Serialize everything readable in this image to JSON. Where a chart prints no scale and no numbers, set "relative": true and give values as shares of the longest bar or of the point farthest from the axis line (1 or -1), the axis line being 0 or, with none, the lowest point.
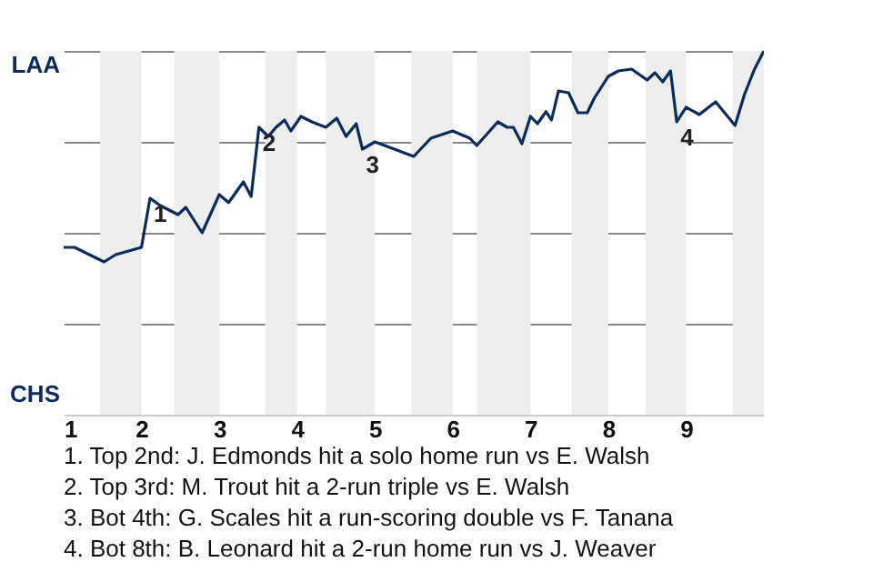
{
  "chart_data": {
    "type": "line",
    "relative": true,
    "x": [
      1.0,
      1.14,
      1.33,
      1.52,
      1.67,
      2.0,
      2.11,
      2.24,
      2.47,
      2.57,
      2.78,
      3.0,
      3.12,
      3.31,
      3.41,
      3.51,
      3.63,
      3.73,
      3.84,
      3.92,
      4.05,
      4.19,
      4.37,
      4.51,
      4.63,
      4.76,
      4.84,
      5.0,
      5.5,
      5.72,
      6.0,
      6.22,
      6.31,
      6.58,
      6.7,
      6.78,
      6.89,
      7.0,
      7.09,
      7.2,
      7.27,
      7.36,
      7.49,
      7.61,
      7.73,
      7.82,
      8.0,
      8.13,
      8.3,
      8.5,
      8.6,
      8.7,
      8.8,
      8.88,
      9.0,
      9.17,
      9.38,
      9.63,
      9.75,
      9.88,
      10.0
    ],
    "series": [
      {
        "color": "#0b2c5a",
        "values": [
          0.46,
          0.46,
          0.44,
          0.42,
          0.44,
          0.46,
          0.595,
          0.575,
          0.55,
          0.57,
          0.5,
          0.605,
          0.583,
          0.64,
          0.6,
          0.79,
          0.765,
          0.79,
          0.81,
          0.78,
          0.82,
          0.805,
          0.79,
          0.815,
          0.765,
          0.8,
          0.73,
          0.75,
          0.71,
          0.76,
          0.78,
          0.76,
          0.74,
          0.805,
          0.79,
          0.79,
          0.745,
          0.82,
          0.8,
          0.833,
          0.81,
          0.89,
          0.885,
          0.83,
          0.83,
          0.87,
          0.93,
          0.945,
          0.95,
          0.92,
          0.94,
          0.915,
          0.945,
          0.805,
          0.845,
          0.825,
          0.86,
          0.795,
          0.88,
          0.95,
          1.0
        ]
      }
    ],
    "xlim": [
      1,
      10
    ],
    "xticks": [
      1,
      2,
      3,
      4,
      5,
      6,
      7,
      8,
      9
    ],
    "grid": "y",
    "bands": [
      {
        "axis": "x",
        "from": 1.47,
        "to": 2,
        "color": "#eeeeee"
      },
      {
        "axis": "x",
        "from": 2.42,
        "to": 3,
        "color": "#eeeeee"
      },
      {
        "axis": "x",
        "from": 3.59,
        "to": 4,
        "color": "#eeeeee"
      },
      {
        "axis": "x",
        "from": 4.37,
        "to": 5,
        "color": "#eeeeee"
      },
      {
        "axis": "x",
        "from": 5.47,
        "to": 6,
        "color": "#eeeeee"
      },
      {
        "axis": "x",
        "from": 6.31,
        "to": 7,
        "color": "#eeeeee"
      },
      {
        "axis": "x",
        "from": 7.53,
        "to": 8,
        "color": "#eeeeee"
      },
      {
        "axis": "x",
        "from": 8.48,
        "to": 9,
        "color": "#eeeeee"
      },
      {
        "axis": "x",
        "from": 9.6,
        "to": 10,
        "color": "#eeeeee"
      }
    ],
    "annotations": [
      "LAA",
      "CHS",
      {
        "text": "1",
        "x": 2.11,
        "y": 0.595
      },
      {
        "text": "2",
        "x": 3.51,
        "y": 0.79
      },
      {
        "text": "3",
        "x": 4.84,
        "y": 0.73
      },
      {
        "text": "4",
        "x": 8.88,
        "y": 0.805
      },
      "1. Top 2nd: J. Edmonds hit a solo home run vs E. Walsh",
      "2. Top 3rd: M. Trout hit a 2-run triple vs E. Walsh",
      "3. Bot 4th: G. Scales hit a run-scoring double vs F. Tanana",
      "4. Bot 8th: B. Leonard hit a 2-run home run vs J. Weaver"
    ]
  }
}
